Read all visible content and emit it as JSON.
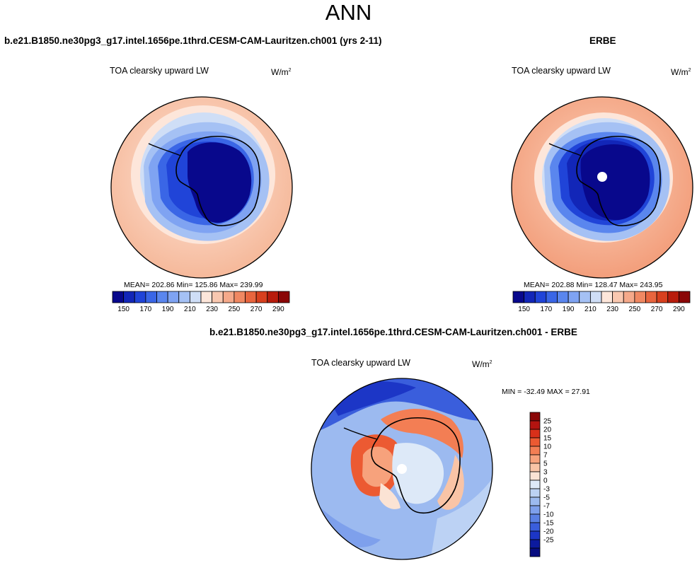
{
  "figure": {
    "title": "ANN"
  },
  "units": {
    "base": "W/m",
    "exponent": "2"
  },
  "panels": [
    {
      "title": "b.e21.B1850.ne30pg3_g17.intel.1656pe.1thrd.CESM-CAM-Lauritzen.ch001 (yrs 2-11)",
      "variable": "TOA clearsky upward LW",
      "stats": "MEAN= 202.86  Min= 125.86  Max= 239.99"
    },
    {
      "title": "ERBE",
      "variable": "TOA clearsky upward LW",
      "stats": "MEAN= 202.88  Min= 128.47  Max= 243.95"
    },
    {
      "title": "b.e21.B1850.ne30pg3_g17.intel.1656pe.1thrd.CESM-CAM-Lauritzen.ch001 - ERBE",
      "variable": "TOA clearsky upward LW",
      "stats": "MIN = -32.49 MAX =  27.91"
    }
  ],
  "colorbar_field": {
    "colors": [
      "#08088c",
      "#1226b8",
      "#2044d8",
      "#3a66e6",
      "#5a86ee",
      "#7fa3f2",
      "#a5c1f4",
      "#cfdef6",
      "#fde6da",
      "#f9c8b0",
      "#f5a98a",
      "#f08862",
      "#e8653e",
      "#d8401e",
      "#b81c0c",
      "#8a0707"
    ],
    "labels": [
      "150",
      "170",
      "190",
      "210",
      "230",
      "250",
      "270",
      "290"
    ]
  },
  "colorbar_diff": {
    "colors": [
      "#8a0707",
      "#b31410",
      "#d8301a",
      "#ec5a32",
      "#f37e54",
      "#f7a27c",
      "#f9c4a6",
      "#fbe3d4",
      "#dde9f8",
      "#bcd2f4",
      "#9cbaf0",
      "#7ea0ec",
      "#5a80e4",
      "#3a5edc",
      "#1c36c6",
      "#0c1a9e",
      "#070c80"
    ],
    "labels": [
      "25",
      "20",
      "15",
      "10",
      "7",
      "5",
      "3",
      "0",
      "-3",
      "-5",
      "-7",
      "-10",
      "-15",
      "-20",
      "-25"
    ]
  }
}
